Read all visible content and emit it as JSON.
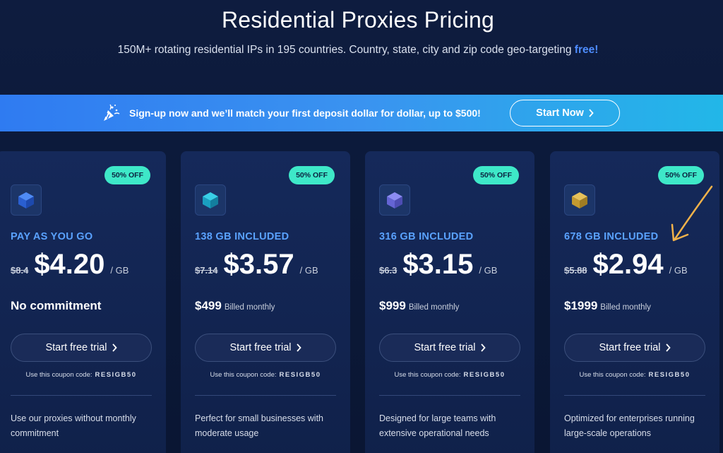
{
  "header": {
    "title": "Residential Proxies Pricing",
    "subtitle": "150M+ rotating residential IPs in 195 countries. Country, state, city and zip code geo-targeting ",
    "subtitle_highlight": "free!"
  },
  "banner": {
    "icon": "party-popper-icon",
    "text": "Sign-up now and we’ll match your first deposit dollar for dollar, up to $500!",
    "button_label": "Start Now",
    "button_icon": "chevron-right-icon"
  },
  "colors": {
    "accent_blue": "#4e8dff",
    "badge_green": "#3ee8c8",
    "plan_label": "#5aa2ff",
    "annotation_arrow": "#f2b24a"
  },
  "plans": [
    {
      "badge": "50% OFF",
      "icon": "cube-blue-icon",
      "name": "PAY AS YOU GO",
      "old_price": "$8.4",
      "price": "$4.20",
      "unit": "/ GB",
      "billing_amount": "No commitment",
      "billing_period": "",
      "button_label": "Start free trial",
      "coupon_label": "Use this coupon code:",
      "coupon_code": "RESIGB50",
      "description": "Use our proxies without monthly commitment"
    },
    {
      "badge": "50% OFF",
      "icon": "cube-teal-icon",
      "name": "138 GB INCLUDED",
      "old_price": "$7.14",
      "price": "$3.57",
      "unit": "/ GB",
      "billing_amount": "$499",
      "billing_period": "Billed monthly",
      "button_label": "Start free trial",
      "coupon_label": "Use this coupon code:",
      "coupon_code": "RESIGB50",
      "description": "Perfect for small businesses with moderate usage"
    },
    {
      "badge": "50% OFF",
      "icon": "cube-purple-icon",
      "name": "316 GB INCLUDED",
      "old_price": "$6.3",
      "price": "$3.15",
      "unit": "/ GB",
      "billing_amount": "$999",
      "billing_period": "Billed monthly",
      "button_label": "Start free trial",
      "coupon_label": "Use this coupon code:",
      "coupon_code": "RESIGB50",
      "description": "Designed for large teams with extensive operational needs"
    },
    {
      "badge": "50% OFF",
      "icon": "cube-gold-icon",
      "name": "678 GB INCLUDED",
      "old_price": "$5.88",
      "price": "$2.94",
      "unit": "/ GB",
      "billing_amount": "$1999",
      "billing_period": "Billed monthly",
      "button_label": "Start free trial",
      "coupon_label": "Use this coupon code:",
      "coupon_code": "RESIGB50",
      "description": "Optimized for enterprises running large-scale operations"
    }
  ]
}
